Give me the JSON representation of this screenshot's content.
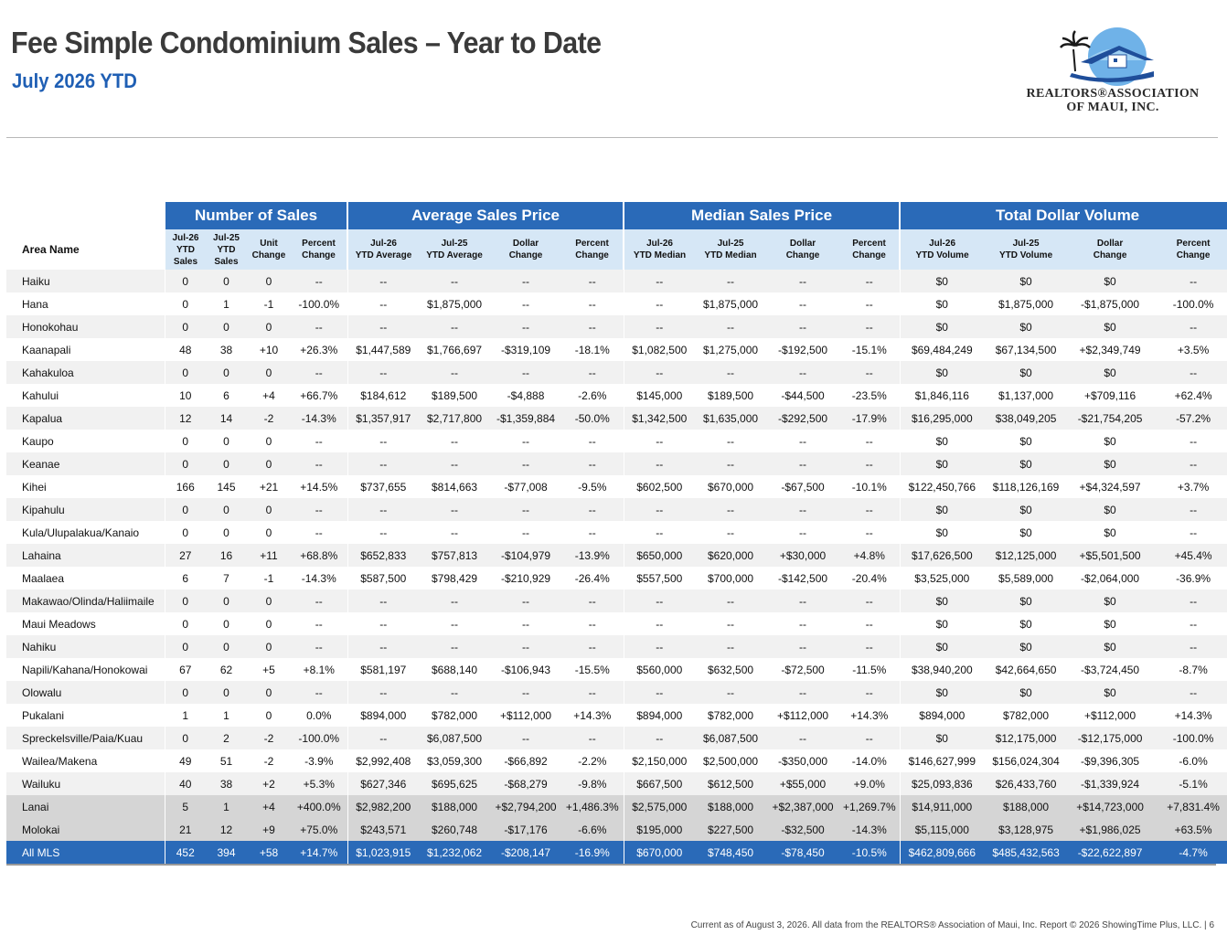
{
  "header": {
    "title": "Fee Simple Condominium Sales – Year to Date",
    "subtitle": "July 2026 YTD",
    "logo_line1": "REALTORS®ASSOCIATION",
    "logo_line2": "OF MAUI, INC."
  },
  "table": {
    "area_header": "Area Name",
    "groups": [
      "Number of Sales",
      "Average Sales Price",
      "Median Sales Price",
      "Total Dollar Volume"
    ],
    "subheaders": [
      [
        "Jul-26",
        "YTD",
        "Sales"
      ],
      [
        "Jul-25",
        "YTD",
        "Sales"
      ],
      [
        "Unit",
        "Change"
      ],
      [
        "Percent",
        "Change"
      ],
      [
        "Jul-26",
        "YTD Average"
      ],
      [
        "Jul-25",
        "YTD Average"
      ],
      [
        "Dollar",
        "Change"
      ],
      [
        "Percent",
        "Change"
      ],
      [
        "Jul-26",
        "YTD Median"
      ],
      [
        "Jul-25",
        "YTD Median"
      ],
      [
        "Dollar",
        "Change"
      ],
      [
        "Percent",
        "Change"
      ],
      [
        "Jul-26",
        "YTD Volume"
      ],
      [
        "Jul-25",
        "YTD Volume"
      ],
      [
        "Dollar",
        "Change"
      ],
      [
        "Percent",
        "Change"
      ]
    ],
    "rows": [
      [
        "Haiku",
        "0",
        "0",
        "0",
        "--",
        "--",
        "--",
        "--",
        "--",
        "--",
        "--",
        "--",
        "--",
        "$0",
        "$0",
        "$0",
        "--"
      ],
      [
        "Hana",
        "0",
        "1",
        "-1",
        "-100.0%",
        "--",
        "$1,875,000",
        "--",
        "--",
        "--",
        "$1,875,000",
        "--",
        "--",
        "$0",
        "$1,875,000",
        "-$1,875,000",
        "-100.0%"
      ],
      [
        "Honokohau",
        "0",
        "0",
        "0",
        "--",
        "--",
        "--",
        "--",
        "--",
        "--",
        "--",
        "--",
        "--",
        "$0",
        "$0",
        "$0",
        "--"
      ],
      [
        "Kaanapali",
        "48",
        "38",
        "+10",
        "+26.3%",
        "$1,447,589",
        "$1,766,697",
        "-$319,109",
        "-18.1%",
        "$1,082,500",
        "$1,275,000",
        "-$192,500",
        "-15.1%",
        "$69,484,249",
        "$67,134,500",
        "+$2,349,749",
        "+3.5%"
      ],
      [
        "Kahakuloa",
        "0",
        "0",
        "0",
        "--",
        "--",
        "--",
        "--",
        "--",
        "--",
        "--",
        "--",
        "--",
        "$0",
        "$0",
        "$0",
        "--"
      ],
      [
        "Kahului",
        "10",
        "6",
        "+4",
        "+66.7%",
        "$184,612",
        "$189,500",
        "-$4,888",
        "-2.6%",
        "$145,000",
        "$189,500",
        "-$44,500",
        "-23.5%",
        "$1,846,116",
        "$1,137,000",
        "+$709,116",
        "+62.4%"
      ],
      [
        "Kapalua",
        "12",
        "14",
        "-2",
        "-14.3%",
        "$1,357,917",
        "$2,717,800",
        "-$1,359,884",
        "-50.0%",
        "$1,342,500",
        "$1,635,000",
        "-$292,500",
        "-17.9%",
        "$16,295,000",
        "$38,049,205",
        "-$21,754,205",
        "-57.2%"
      ],
      [
        "Kaupo",
        "0",
        "0",
        "0",
        "--",
        "--",
        "--",
        "--",
        "--",
        "--",
        "--",
        "--",
        "--",
        "$0",
        "$0",
        "$0",
        "--"
      ],
      [
        "Keanae",
        "0",
        "0",
        "0",
        "--",
        "--",
        "--",
        "--",
        "--",
        "--",
        "--",
        "--",
        "--",
        "$0",
        "$0",
        "$0",
        "--"
      ],
      [
        "Kihei",
        "166",
        "145",
        "+21",
        "+14.5%",
        "$737,655",
        "$814,663",
        "-$77,008",
        "-9.5%",
        "$602,500",
        "$670,000",
        "-$67,500",
        "-10.1%",
        "$122,450,766",
        "$118,126,169",
        "+$4,324,597",
        "+3.7%"
      ],
      [
        "Kipahulu",
        "0",
        "0",
        "0",
        "--",
        "--",
        "--",
        "--",
        "--",
        "--",
        "--",
        "--",
        "--",
        "$0",
        "$0",
        "$0",
        "--"
      ],
      [
        "Kula/Ulupalakua/Kanaio",
        "0",
        "0",
        "0",
        "--",
        "--",
        "--",
        "--",
        "--",
        "--",
        "--",
        "--",
        "--",
        "$0",
        "$0",
        "$0",
        "--"
      ],
      [
        "Lahaina",
        "27",
        "16",
        "+11",
        "+68.8%",
        "$652,833",
        "$757,813",
        "-$104,979",
        "-13.9%",
        "$650,000",
        "$620,000",
        "+$30,000",
        "+4.8%",
        "$17,626,500",
        "$12,125,000",
        "+$5,501,500",
        "+45.4%"
      ],
      [
        "Maalaea",
        "6",
        "7",
        "-1",
        "-14.3%",
        "$587,500",
        "$798,429",
        "-$210,929",
        "-26.4%",
        "$557,500",
        "$700,000",
        "-$142,500",
        "-20.4%",
        "$3,525,000",
        "$5,589,000",
        "-$2,064,000",
        "-36.9%"
      ],
      [
        "Makawao/Olinda/Haliimaile",
        "0",
        "0",
        "0",
        "--",
        "--",
        "--",
        "--",
        "--",
        "--",
        "--",
        "--",
        "--",
        "$0",
        "$0",
        "$0",
        "--"
      ],
      [
        "Maui Meadows",
        "0",
        "0",
        "0",
        "--",
        "--",
        "--",
        "--",
        "--",
        "--",
        "--",
        "--",
        "--",
        "$0",
        "$0",
        "$0",
        "--"
      ],
      [
        "Nahiku",
        "0",
        "0",
        "0",
        "--",
        "--",
        "--",
        "--",
        "--",
        "--",
        "--",
        "--",
        "--",
        "$0",
        "$0",
        "$0",
        "--"
      ],
      [
        "Napili/Kahana/Honokowai",
        "67",
        "62",
        "+5",
        "+8.1%",
        "$581,197",
        "$688,140",
        "-$106,943",
        "-15.5%",
        "$560,000",
        "$632,500",
        "-$72,500",
        "-11.5%",
        "$38,940,200",
        "$42,664,650",
        "-$3,724,450",
        "-8.7%"
      ],
      [
        "Olowalu",
        "0",
        "0",
        "0",
        "--",
        "--",
        "--",
        "--",
        "--",
        "--",
        "--",
        "--",
        "--",
        "$0",
        "$0",
        "$0",
        "--"
      ],
      [
        "Pukalani",
        "1",
        "1",
        "0",
        "0.0%",
        "$894,000",
        "$782,000",
        "+$112,000",
        "+14.3%",
        "$894,000",
        "$782,000",
        "+$112,000",
        "+14.3%",
        "$894,000",
        "$782,000",
        "+$112,000",
        "+14.3%"
      ],
      [
        "Spreckelsville/Paia/Kuau",
        "0",
        "2",
        "-2",
        "-100.0%",
        "--",
        "$6,087,500",
        "--",
        "--",
        "--",
        "$6,087,500",
        "--",
        "--",
        "$0",
        "$12,175,000",
        "-$12,175,000",
        "-100.0%"
      ],
      [
        "Wailea/Makena",
        "49",
        "51",
        "-2",
        "-3.9%",
        "$2,992,408",
        "$3,059,300",
        "-$66,892",
        "-2.2%",
        "$2,150,000",
        "$2,500,000",
        "-$350,000",
        "-14.0%",
        "$146,627,999",
        "$156,024,304",
        "-$9,396,305",
        "-6.0%"
      ],
      [
        "Wailuku",
        "40",
        "38",
        "+2",
        "+5.3%",
        "$627,346",
        "$695,625",
        "-$68,279",
        "-9.8%",
        "$667,500",
        "$612,500",
        "+$55,000",
        "+9.0%",
        "$25,093,836",
        "$26,433,760",
        "-$1,339,924",
        "-5.1%"
      ],
      [
        "Lanai",
        "5",
        "1",
        "+4",
        "+400.0%",
        "$2,982,200",
        "$188,000",
        "+$2,794,200",
        "+1,486.3%",
        "$2,575,000",
        "$188,000",
        "+$2,387,000",
        "+1,269.7%",
        "$14,911,000",
        "$188,000",
        "+$14,723,000",
        "+7,831.4%"
      ],
      [
        "Molokai",
        "21",
        "12",
        "+9",
        "+75.0%",
        "$243,571",
        "$260,748",
        "-$17,176",
        "-6.6%",
        "$195,000",
        "$227,500",
        "-$32,500",
        "-14.3%",
        "$5,115,000",
        "$3,128,975",
        "+$1,986,025",
        "+63.5%"
      ],
      [
        "All MLS",
        "452",
        "394",
        "+58",
        "+14.7%",
        "$1,023,915",
        "$1,232,062",
        "-$208,147",
        "-16.9%",
        "$670,000",
        "$748,450",
        "-$78,450",
        "-10.5%",
        "$462,809,666",
        "$485,432,563",
        "-$22,622,897",
        "-4.7%"
      ]
    ]
  },
  "footer": {
    "text": "Current as of August 3, 2026. All data from the REALTORS® Association of Maui, Inc. Report © 2026 ShowingTime Plus, LLC.  |  6"
  }
}
